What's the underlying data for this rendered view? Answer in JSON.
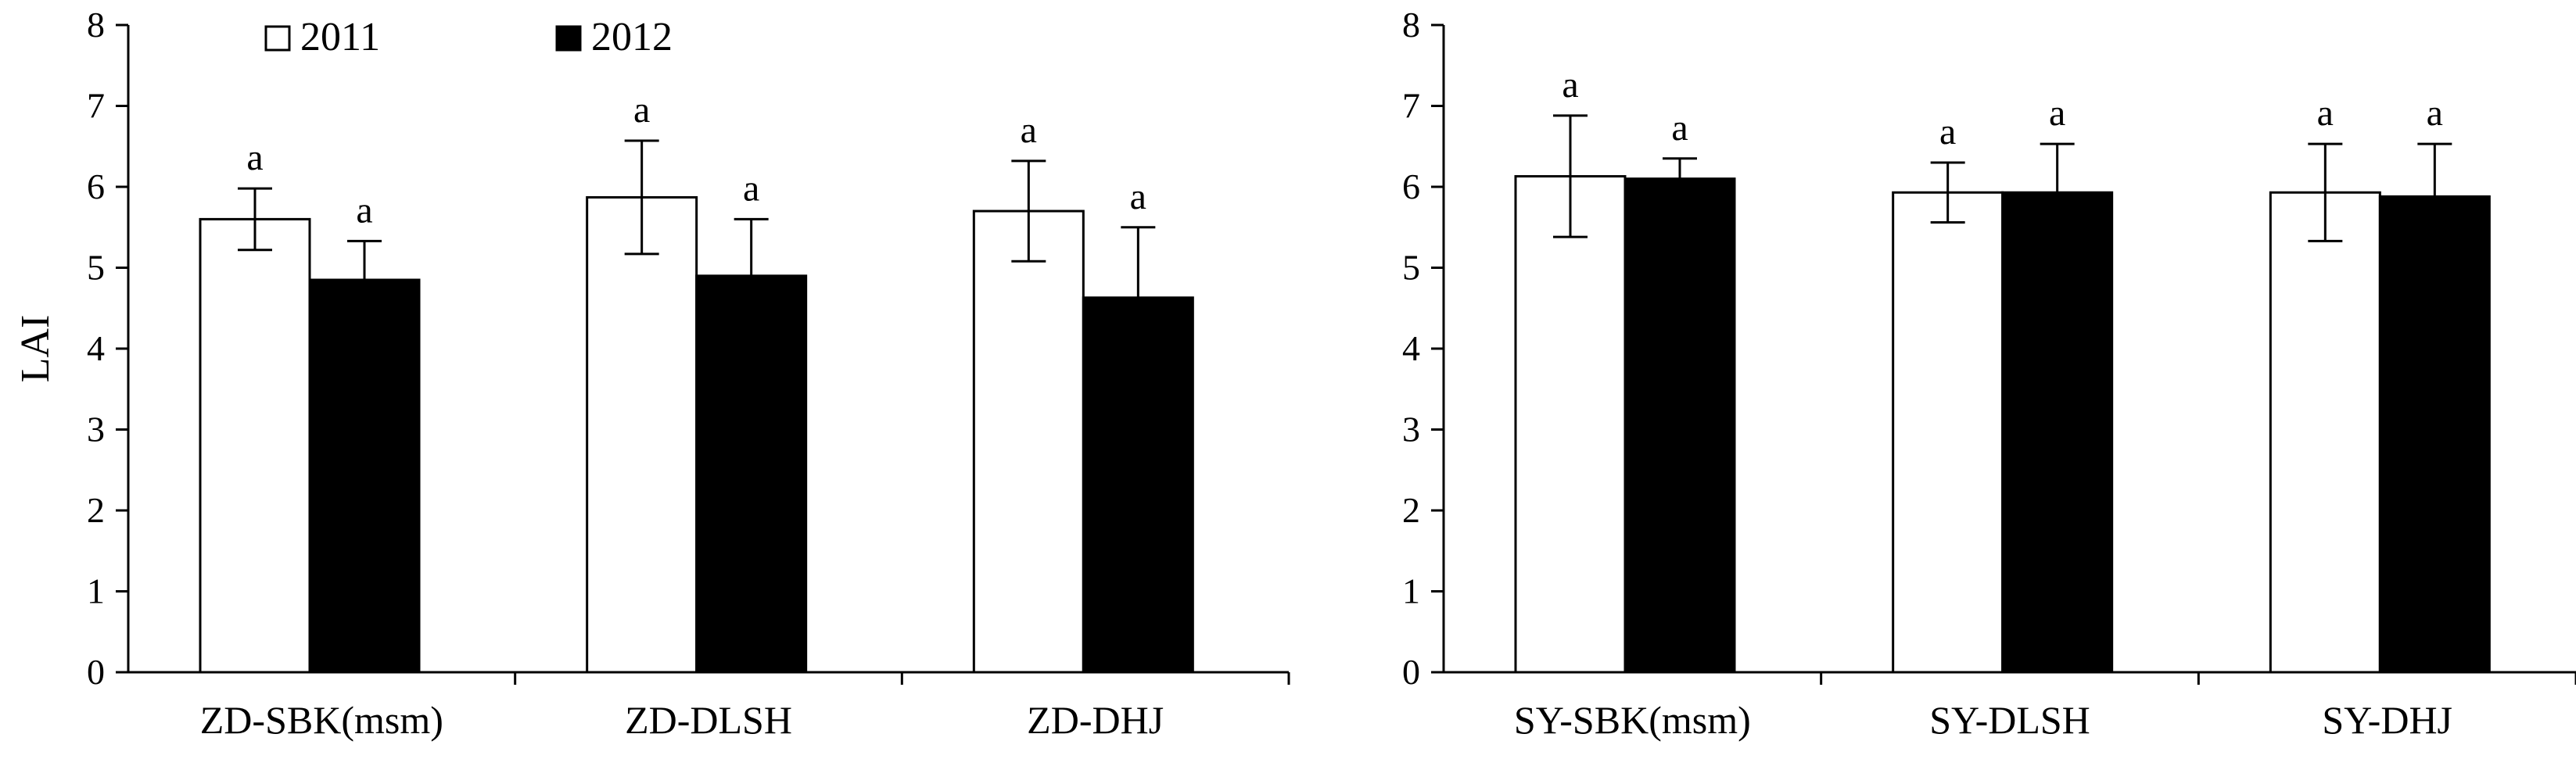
{
  "chart_data": [
    {
      "type": "bar",
      "title": "",
      "xlabel": "",
      "ylabel": "LAI",
      "ylim": [
        0,
        8
      ],
      "yticks": [
        "0",
        "1",
        "2",
        "3",
        "4",
        "5",
        "6",
        "7",
        "8"
      ],
      "grid": false,
      "legend": "top-left",
      "categories": [
        "ZD-SBK(msm)",
        "ZD-DLSH",
        "ZD-DHJ"
      ],
      "series": [
        {
          "name": "2011",
          "color": "#ffffff",
          "values": [
            5.6,
            5.87,
            5.7
          ],
          "errors": [
            0.38,
            0.7,
            0.62
          ],
          "labels": [
            "a",
            "a",
            "a"
          ]
        },
        {
          "name": "2012",
          "color": "#000000",
          "values": [
            4.85,
            4.9,
            4.63
          ],
          "errors": [
            0.48,
            0.7,
            0.87
          ],
          "labels": [
            "a",
            "a",
            "a"
          ]
        }
      ]
    },
    {
      "type": "bar",
      "title": "",
      "xlabel": "",
      "ylabel": "",
      "ylim": [
        0,
        8
      ],
      "yticks": [
        "0",
        "1",
        "2",
        "3",
        "4",
        "5",
        "6",
        "7",
        "8"
      ],
      "grid": false,
      "legend": "none",
      "categories": [
        "SY-SBK(msm)",
        "SY-DLSH",
        "SY-DHJ"
      ],
      "series": [
        {
          "name": "2011",
          "color": "#ffffff",
          "values": [
            6.13,
            5.93,
            5.93
          ],
          "errors": [
            0.75,
            0.37,
            0.6
          ],
          "labels": [
            "a",
            "a",
            "a"
          ]
        },
        {
          "name": "2012",
          "color": "#000000",
          "values": [
            6.1,
            5.93,
            5.88
          ],
          "errors": [
            0.25,
            0.6,
            0.65
          ],
          "labels": [
            "a",
            "a",
            "a"
          ]
        }
      ]
    }
  ]
}
